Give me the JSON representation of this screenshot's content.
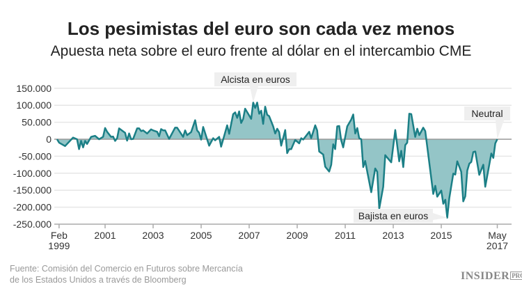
{
  "title": "Los pesimistas del euro son cada vez menos",
  "subtitle": "Apuesta neta sobre el euro frente al dólar en el intercambio CME",
  "source": {
    "line1": "Fuente: Comisión del Comercio en Futuros sobre Mercancía",
    "line2": "de los Estados Unidos a través de Bloomberg"
  },
  "logo": {
    "main": "INSIDER",
    "sub": "PRO"
  },
  "colors": {
    "line": "#1b7f86",
    "fill": "#94c5c7",
    "grid": "#e6e6e6",
    "zero": "#999999",
    "annotation_bg": "#efefef"
  },
  "chart_data": {
    "type": "area",
    "title": "Los pesimistas del euro son cada vez menos",
    "subtitle": "Apuesta neta sobre el euro frente al dólar en el intercambio CME",
    "xlabel": "",
    "ylabel": "",
    "ylim": [
      -250000,
      150000
    ],
    "grid": true,
    "yticks": [
      {
        "value": 150000,
        "label": "150.000"
      },
      {
        "value": 100000,
        "label": "100.000"
      },
      {
        "value": 50000,
        "label": "50.000"
      },
      {
        "value": 0,
        "label": "0"
      },
      {
        "value": -50000,
        "label": "-50.000"
      },
      {
        "value": -100000,
        "label": "-100.000"
      },
      {
        "value": -150000,
        "label": "-150.000"
      },
      {
        "value": -200000,
        "label": "-200.000"
      },
      {
        "value": -250000,
        "label": "-250.000"
      }
    ],
    "xticks": [
      {
        "date": "1999-02",
        "label": "Feb",
        "label2": "1999"
      },
      {
        "date": "2001-01",
        "label": "2001"
      },
      {
        "date": "2003-01",
        "label": "2003"
      },
      {
        "date": "2005-01",
        "label": "2005"
      },
      {
        "date": "2007-01",
        "label": "2007"
      },
      {
        "date": "2009-01",
        "label": "2009"
      },
      {
        "date": "2011-01",
        "label": "2011"
      },
      {
        "date": "2013-01",
        "label": "2013"
      },
      {
        "date": "2015-01",
        "label": "2015"
      },
      {
        "date": "2017-05",
        "label": "May",
        "label2": "2017"
      }
    ],
    "annotations": [
      {
        "text": "Alcista en euros",
        "date": "2007-03",
        "value": 108000
      },
      {
        "text": "Bajista en euros",
        "date": "2015-04",
        "value": -231000
      },
      {
        "text": "Neutral",
        "date": "2017-05",
        "value": 0
      }
    ],
    "points": [
      [
        "1999-01",
        0
      ],
      [
        "1999-02",
        -10000
      ],
      [
        "1999-05",
        -20000
      ],
      [
        "1999-09",
        5000
      ],
      [
        "1999-11",
        0
      ],
      [
        "1999-12",
        -29000
      ],
      [
        "2000-01",
        -5000
      ],
      [
        "2000-02",
        -24000
      ],
      [
        "2000-03",
        -5000
      ],
      [
        "2000-04",
        -14000
      ],
      [
        "2000-06",
        7000
      ],
      [
        "2000-08",
        10000
      ],
      [
        "2000-10",
        0
      ],
      [
        "2000-12",
        7000
      ],
      [
        "2001-01",
        33000
      ],
      [
        "2001-02",
        22000
      ],
      [
        "2001-04",
        7000
      ],
      [
        "2001-05",
        8000
      ],
      [
        "2001-06",
        -5000
      ],
      [
        "2001-07",
        3000
      ],
      [
        "2001-08",
        32000
      ],
      [
        "2001-11",
        19000
      ],
      [
        "2001-12",
        -4000
      ],
      [
        "2002-01",
        17000
      ],
      [
        "2002-02",
        0
      ],
      [
        "2002-03",
        1000
      ],
      [
        "2002-05",
        32000
      ],
      [
        "2002-06",
        32000
      ],
      [
        "2002-07",
        24000
      ],
      [
        "2002-08",
        26000
      ],
      [
        "2002-10",
        17000
      ],
      [
        "2002-12",
        29000
      ],
      [
        "2003-01",
        26000
      ],
      [
        "2003-03",
        22000
      ],
      [
        "2003-04",
        9000
      ],
      [
        "2003-05",
        30000
      ],
      [
        "2003-06",
        26000
      ],
      [
        "2003-07",
        26000
      ],
      [
        "2003-09",
        1000
      ],
      [
        "2003-12",
        34000
      ],
      [
        "2004-01",
        34000
      ],
      [
        "2004-04",
        7000
      ],
      [
        "2004-05",
        26000
      ],
      [
        "2004-06",
        12000
      ],
      [
        "2004-08",
        21000
      ],
      [
        "2004-10",
        56000
      ],
      [
        "2004-11",
        26000
      ],
      [
        "2004-12",
        19000
      ],
      [
        "2005-01",
        -1000
      ],
      [
        "2005-02",
        36000
      ],
      [
        "2005-05",
        -19000
      ],
      [
        "2005-07",
        3000
      ],
      [
        "2005-08",
        -3000
      ],
      [
        "2005-10",
        7000
      ],
      [
        "2005-11",
        -22000
      ],
      [
        "2006-02",
        41000
      ],
      [
        "2006-03",
        16000
      ],
      [
        "2006-05",
        74000
      ],
      [
        "2006-06",
        79000
      ],
      [
        "2006-07",
        63000
      ],
      [
        "2006-08",
        82000
      ],
      [
        "2006-09",
        48000
      ],
      [
        "2006-10",
        60000
      ],
      [
        "2006-11",
        90000
      ],
      [
        "2007-02",
        60000
      ],
      [
        "2007-03",
        108000
      ],
      [
        "2007-04",
        92000
      ],
      [
        "2007-05",
        108000
      ],
      [
        "2007-06",
        75000
      ],
      [
        "2007-07",
        84000
      ],
      [
        "2007-08",
        45000
      ],
      [
        "2007-09",
        96000
      ],
      [
        "2007-10",
        72000
      ],
      [
        "2007-11",
        68000
      ],
      [
        "2008-01",
        38000
      ],
      [
        "2008-02",
        17000
      ],
      [
        "2008-03",
        31000
      ],
      [
        "2008-04",
        21000
      ],
      [
        "2008-05",
        -19000
      ],
      [
        "2008-07",
        27000
      ],
      [
        "2008-08",
        -41000
      ],
      [
        "2008-09",
        -29000
      ],
      [
        "2008-10",
        -29000
      ],
      [
        "2008-12",
        -2000
      ],
      [
        "2009-02",
        -12000
      ],
      [
        "2009-03",
        3000
      ],
      [
        "2009-04",
        -1000
      ],
      [
        "2009-07",
        22000
      ],
      [
        "2009-08",
        3000
      ],
      [
        "2009-10",
        41000
      ],
      [
        "2009-11",
        26000
      ],
      [
        "2009-12",
        -36000
      ],
      [
        "2010-02",
        -45000
      ],
      [
        "2010-03",
        -81000
      ],
      [
        "2010-05",
        -95000
      ],
      [
        "2010-06",
        -75000
      ],
      [
        "2010-07",
        -15000
      ],
      [
        "2010-08",
        -29000
      ],
      [
        "2010-09",
        38000
      ],
      [
        "2010-10",
        39000
      ],
      [
        "2010-11",
        -3000
      ],
      [
        "2010-12",
        -24000
      ],
      [
        "2011-02",
        38000
      ],
      [
        "2011-04",
        58000
      ],
      [
        "2011-05",
        73000
      ],
      [
        "2011-06",
        17000
      ],
      [
        "2011-07",
        33000
      ],
      [
        "2011-08",
        3000
      ],
      [
        "2011-09",
        0
      ],
      [
        "2011-10",
        -82000
      ],
      [
        "2011-11",
        -64000
      ],
      [
        "2012-02",
        -156000
      ],
      [
        "2012-04",
        -86000
      ],
      [
        "2012-05",
        -96000
      ],
      [
        "2012-06",
        -204000
      ],
      [
        "2012-08",
        -140000
      ],
      [
        "2012-09",
        -47000
      ],
      [
        "2012-12",
        -68000
      ],
      [
        "2013-02",
        27000
      ],
      [
        "2013-04",
        -65000
      ],
      [
        "2013-05",
        -34000
      ],
      [
        "2013-06",
        -82000
      ],
      [
        "2013-07",
        -17000
      ],
      [
        "2013-08",
        -10000
      ],
      [
        "2013-09",
        75000
      ],
      [
        "2013-10",
        74000
      ],
      [
        "2013-12",
        7000
      ],
      [
        "2014-01",
        31000
      ],
      [
        "2014-02",
        12000
      ],
      [
        "2014-04",
        34000
      ],
      [
        "2014-05",
        24000
      ],
      [
        "2014-09",
        -161000
      ],
      [
        "2014-10",
        -137000
      ],
      [
        "2014-11",
        -169000
      ],
      [
        "2015-01",
        -151000
      ],
      [
        "2015-02",
        -190000
      ],
      [
        "2015-03",
        -178000
      ],
      [
        "2015-04",
        -231000
      ],
      [
        "2015-05",
        -174000
      ],
      [
        "2015-07",
        -101000
      ],
      [
        "2015-08",
        -104000
      ],
      [
        "2015-09",
        -65000
      ],
      [
        "2015-11",
        -96000
      ],
      [
        "2015-12",
        -183000
      ],
      [
        "2016-01",
        -168000
      ],
      [
        "2016-02",
        -92000
      ],
      [
        "2016-03",
        -72000
      ],
      [
        "2016-04",
        -67000
      ],
      [
        "2016-05",
        -38000
      ],
      [
        "2016-06",
        -36000
      ],
      [
        "2016-08",
        -105000
      ],
      [
        "2016-10",
        -75000
      ],
      [
        "2016-11",
        -140000
      ],
      [
        "2017-02",
        -42000
      ],
      [
        "2017-03",
        -55000
      ],
      [
        "2017-04",
        -12000
      ],
      [
        "2017-05",
        0
      ]
    ]
  }
}
